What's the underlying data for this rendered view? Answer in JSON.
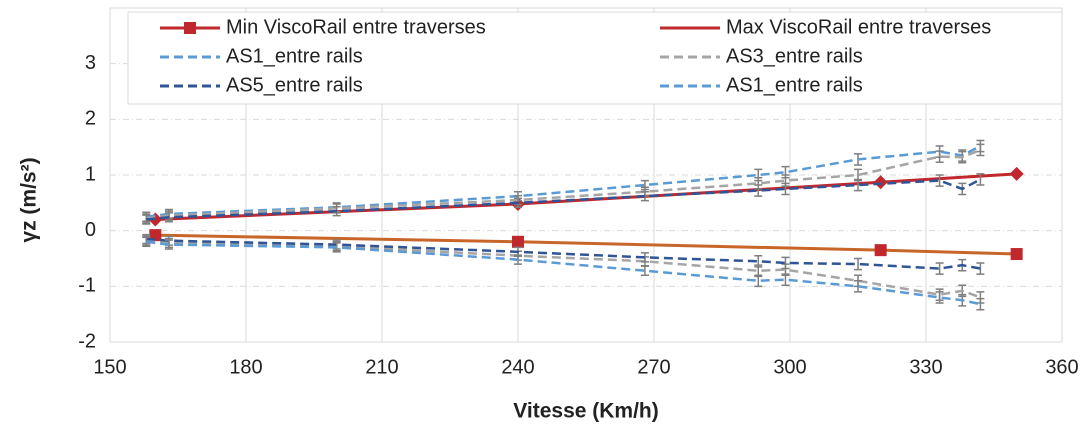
{
  "chart_data": {
    "type": "line",
    "x_label": "Vitesse (Km/h)",
    "y_label": "γz (m/s²)",
    "xlim": [
      150,
      360
    ],
    "xticks": [
      150,
      180,
      210,
      240,
      270,
      300,
      330,
      360
    ],
    "ylim": [
      -2,
      4
    ],
    "yticks": [
      -2,
      -1,
      0,
      1,
      2,
      3
    ],
    "grid": true,
    "legend": "top",
    "error_color": "#7f7f7f",
    "series": [
      {
        "name": "Min ViscoRail entre traverses",
        "color": "#c0282d",
        "line_color": "#c8662a",
        "marker": "square",
        "dash": false,
        "x": [
          160,
          240,
          320,
          350
        ],
        "values": [
          -0.08,
          -0.2,
          -0.35,
          -0.42
        ]
      },
      {
        "name": "Max ViscoRail entre traverses",
        "color": "#c0282d",
        "line_color": "#c0282d",
        "marker": "diamond",
        "dash": false,
        "x": [
          160,
          240,
          320,
          350
        ],
        "values": [
          0.2,
          0.48,
          0.87,
          1.02
        ]
      },
      {
        "name": "AS1_entre rails",
        "color": "#5b9bd5",
        "dash": true,
        "x": [
          158,
          163,
          200,
          240,
          268,
          293,
          299,
          315,
          333,
          338,
          342
        ],
        "values": [
          0.25,
          0.3,
          0.42,
          0.62,
          0.82,
          1.0,
          1.05,
          1.28,
          1.42,
          1.35,
          1.52
        ],
        "errors": [
          0.08,
          0.08,
          0.08,
          0.08,
          0.08,
          0.1,
          0.1,
          0.1,
          0.1,
          0.1,
          0.1
        ]
      },
      {
        "name": "AS3_entre rails",
        "color": "#a5a5a5",
        "dash": true,
        "x": [
          158,
          163,
          200,
          240,
          268,
          293,
          299,
          315,
          333,
          338,
          342
        ],
        "values": [
          0.22,
          0.27,
          0.4,
          0.55,
          0.7,
          0.85,
          0.9,
          1.0,
          1.33,
          1.32,
          1.45
        ],
        "lower_values": [
          -0.18,
          -0.22,
          -0.28,
          -0.45,
          -0.55,
          -0.72,
          -0.7,
          -0.9,
          -1.15,
          -1.08,
          -1.2
        ],
        "errors": [
          0.08,
          0.08,
          0.08,
          0.08,
          0.08,
          0.1,
          0.1,
          0.1,
          0.1,
          0.1,
          0.1
        ]
      },
      {
        "name": "AS5_entre rails",
        "color": "#2f5597",
        "dash": true,
        "x": [
          158,
          163,
          200,
          240,
          268,
          293,
          299,
          315,
          333,
          338,
          342
        ],
        "values": [
          0.2,
          0.24,
          0.35,
          0.5,
          0.62,
          0.72,
          0.75,
          0.82,
          0.9,
          0.75,
          0.92
        ],
        "lower_values": [
          -0.15,
          -0.18,
          -0.25,
          -0.38,
          -0.48,
          -0.55,
          -0.58,
          -0.6,
          -0.68,
          -0.62,
          -0.68
        ],
        "errors": [
          0.08,
          0.08,
          0.08,
          0.08,
          0.08,
          0.1,
          0.1,
          0.1,
          0.1,
          0.1,
          0.1
        ]
      },
      {
        "name": "AS1_entre rails",
        "color": "#5b9bd5",
        "dash": true,
        "x": [
          158,
          163,
          200,
          240,
          268,
          293,
          299,
          315,
          333,
          338,
          342
        ],
        "values": [
          -0.2,
          -0.25,
          -0.3,
          -0.52,
          -0.72,
          -0.9,
          -0.88,
          -1.0,
          -1.2,
          -1.25,
          -1.32
        ],
        "errors": [
          0.08,
          0.08,
          0.08,
          0.08,
          0.08,
          0.1,
          0.1,
          0.1,
          0.1,
          0.1,
          0.1
        ]
      }
    ]
  }
}
